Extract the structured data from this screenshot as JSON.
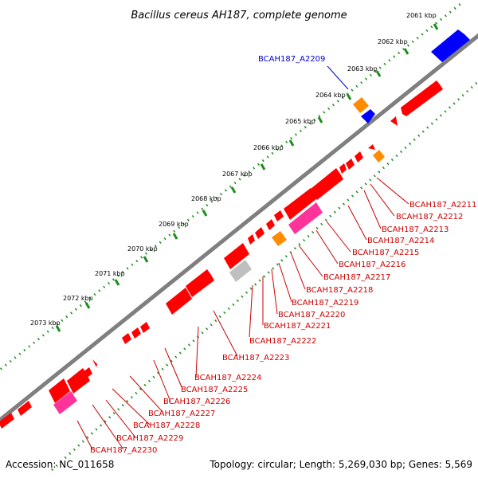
{
  "title": "Bacillus cereus AH187, complete genome",
  "footer": {
    "accession": "Accession: NC_011658",
    "summary": "Topology: circular; Length: 5,269,030 bp; Genes: 5,569"
  },
  "colors": {
    "backbone": "#7f7f7f",
    "scale_dots": "#1e8c1e",
    "gene_red": "#ff0000",
    "gene_blue": "#0000ff",
    "gene_orange": "#ff8c00",
    "gene_pink": "#ff3399",
    "gene_gray": "#bfbfbf",
    "label_red": "#cc0000",
    "label_blue": "#0000cc"
  },
  "scale_labels": [
    "2061 kbp",
    "2062 kbp",
    "2063 kbp",
    "2064 kbp",
    "2065 kbp",
    "2066 kbp",
    "2067 kbp",
    "2068 kbp",
    "2069 kbp",
    "2070 kbp",
    "2071 kbp",
    "2072 kbp",
    "2073 kbp"
  ],
  "gene_labels": [
    {
      "id": "BCAH187_A2209",
      "color": "blue"
    },
    {
      "id": "BCAH187_A2211",
      "color": "red"
    },
    {
      "id": "BCAH187_A2212",
      "color": "red"
    },
    {
      "id": "BCAH187_A2213",
      "color": "red"
    },
    {
      "id": "BCAH187_A2214",
      "color": "red"
    },
    {
      "id": "BCAH187_A2215",
      "color": "red"
    },
    {
      "id": "BCAH187_A2216",
      "color": "red"
    },
    {
      "id": "BCAH187_A2217",
      "color": "red"
    },
    {
      "id": "BCAH187_A2218",
      "color": "red"
    },
    {
      "id": "BCAH187_A2219",
      "color": "red"
    },
    {
      "id": "BCAH187_A2220",
      "color": "red"
    },
    {
      "id": "BCAH187_A2221",
      "color": "red"
    },
    {
      "id": "BCAH187_A2222",
      "color": "red"
    },
    {
      "id": "BCAH187_A2223",
      "color": "red"
    },
    {
      "id": "BCAH187_A2224",
      "color": "red"
    },
    {
      "id": "BCAH187_A2225",
      "color": "red"
    },
    {
      "id": "BCAH187_A2226",
      "color": "red"
    },
    {
      "id": "BCAH187_A2227",
      "color": "red"
    },
    {
      "id": "BCAH187_A2228",
      "color": "red"
    },
    {
      "id": "BCAH187_A2229",
      "color": "red"
    },
    {
      "id": "BCAH187_A2230",
      "color": "red"
    }
  ]
}
